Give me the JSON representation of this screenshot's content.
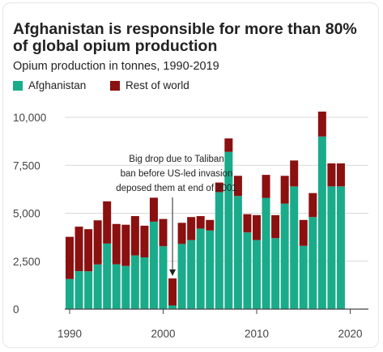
{
  "chart_data": {
    "type": "bar",
    "stacked": true,
    "title": "Afghanistan is responsible for more than 80% of global opium production",
    "subtitle": "Opium production in tonnes, 1990-2019",
    "x": [
      1990,
      1991,
      1992,
      1993,
      1994,
      1995,
      1996,
      1997,
      1998,
      1999,
      2000,
      2001,
      2002,
      2003,
      2004,
      2005,
      2006,
      2007,
      2008,
      2009,
      2010,
      2011,
      2012,
      2013,
      2014,
      2015,
      2016,
      2017,
      2018,
      2019
    ],
    "series": [
      {
        "name": "Afghanistan",
        "color": "#1aab8a",
        "values": [
          1570,
          1980,
          1970,
          2330,
          3420,
          2340,
          2250,
          2800,
          2700,
          4560,
          3280,
          190,
          3400,
          3600,
          4200,
          4100,
          6100,
          8200,
          5900,
          4000,
          3600,
          5800,
          3700,
          5500,
          6400,
          3300,
          4800,
          9000,
          6400,
          6400
        ]
      },
      {
        "name": "Rest of world",
        "color": "#8b1010",
        "values": [
          2200,
          2320,
          2200,
          2300,
          2200,
          2100,
          2150,
          2050,
          1650,
          1250,
          1420,
          1410,
          1100,
          1200,
          650,
          550,
          500,
          700,
          1050,
          950,
          1300,
          1200,
          1200,
          1450,
          1350,
          1350,
          1250,
          1300,
          1200,
          1200
        ]
      }
    ],
    "ylim": [
      0,
      10000
    ],
    "yticks": [
      0,
      2500,
      5000,
      7500,
      10000
    ],
    "ytick_labels": [
      "0",
      "2,500",
      "5,000",
      "7,500",
      "10,000"
    ],
    "xlim": [
      1989.5,
      2019.5
    ],
    "xticks": [
      1990,
      2000,
      2010,
      2020
    ],
    "xtick_labels": [
      "1990",
      "2000",
      "2010",
      "2020"
    ],
    "xlabel": "",
    "ylabel": "",
    "grid": true,
    "legend_position": "top-left",
    "annotation": {
      "text_lines": [
        "Big drop due to Taliban",
        "ban before US-led invasion",
        "deposed them at end of 2001"
      ],
      "target_year": 2001
    }
  }
}
